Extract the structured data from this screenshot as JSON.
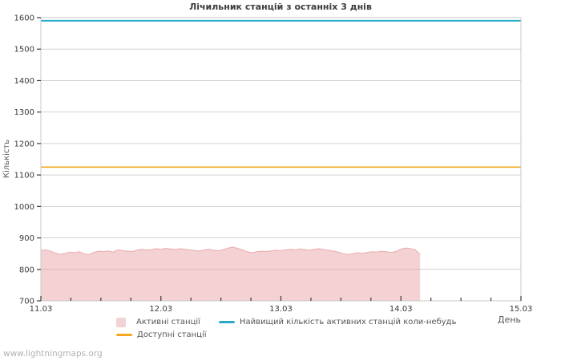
{
  "axes": {
    "x_title": "День",
    "y_title": "Кількість"
  },
  "legend": {
    "items": [
      {
        "label": "Активні станції",
        "swatch": "area",
        "color": "#f2d3d5"
      },
      {
        "label": "Доступні станції",
        "swatch": "line",
        "color": "#f4a81d"
      },
      {
        "label": "Найвищий кількість активних станцій коли-небудь",
        "swatch": "line",
        "color": "#29abc8"
      }
    ]
  },
  "footer": {
    "watermark": "www.lightningmaps.org"
  },
  "colors": {
    "grid": "#d2d2d2",
    "border": "#c9c9c9",
    "tick": "#3a3a3a",
    "tick_label": "#3a3a3a",
    "area_fill": "rgba(231,152,158,0.45)",
    "area_edge": "rgba(224,135,142,0.6)"
  },
  "chart_data": {
    "type": "area",
    "title": "Лічильник станцій з останніх 3 днів",
    "xlabel": "День",
    "ylabel": "Кількість",
    "xlim": [
      0,
      4
    ],
    "ylim": [
      700,
      1600
    ],
    "x_tick_labels": [
      "11.03",
      "12.03",
      "13.03",
      "14.03",
      "15.03"
    ],
    "x_tick_days": [
      0,
      1,
      2,
      3,
      4
    ],
    "minor_tick_step_days": 0.25,
    "y_ticks": [
      700,
      800,
      900,
      1000,
      1100,
      1200,
      1300,
      1400,
      1500,
      1600
    ],
    "grid": "horizontal",
    "legend_position": "bottom",
    "series": [
      {
        "name": "Активні станції",
        "type": "area",
        "x_start": 0,
        "x_step": 0.04,
        "y": [
          860,
          862,
          858,
          852,
          848,
          851,
          855,
          853,
          856,
          850,
          847,
          854,
          858,
          856,
          859,
          855,
          862,
          860,
          858,
          857,
          861,
          864,
          862,
          863,
          866,
          864,
          867,
          865,
          863,
          866,
          864,
          862,
          860,
          858,
          862,
          864,
          861,
          859,
          863,
          868,
          871,
          867,
          862,
          856,
          853,
          856,
          858,
          857,
          859,
          861,
          860,
          862,
          864,
          862,
          865,
          863,
          861,
          864,
          866,
          863,
          861,
          858,
          855,
          850,
          847,
          850,
          853,
          851,
          854,
          856,
          855,
          858,
          856,
          854,
          857,
          865,
          868,
          866,
          862,
          848
        ]
      },
      {
        "name": "Доступні станції",
        "type": "hline",
        "value": 1125,
        "color": "#f4a81d",
        "width": 1.6
      },
      {
        "name": "Найвищий кількість активних станцій коли-небудь",
        "type": "hline",
        "value": 1590,
        "color": "#29abc8",
        "width": 2
      }
    ]
  }
}
